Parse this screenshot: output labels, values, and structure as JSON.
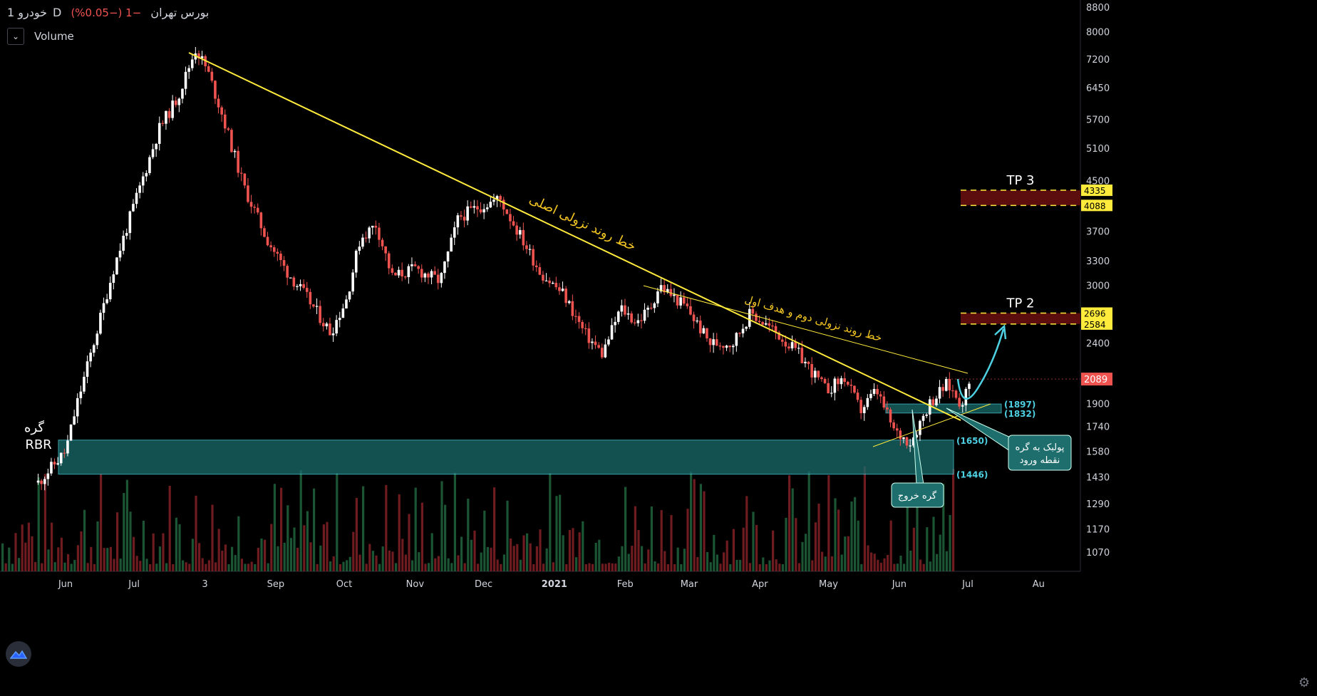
{
  "header": {
    "symbol": "خودرو",
    "interval": "1D",
    "exchange": "بورس تهران",
    "change": "−1 (−0.05%)",
    "volume_label": "Volume"
  },
  "icons": {
    "volume_toggle": "chevron-down-icon",
    "logo": "tradingview-logo-icon",
    "settings": "gear-icon"
  },
  "colors": {
    "up": "#ffffff",
    "down": "#ef5350",
    "trend": "#ffeb3b",
    "zone": "#1a6b6b",
    "tp": "#5c0d0d",
    "label_bg": "#ffeb3b",
    "cyan": "#4dd0e1"
  },
  "chart_data": {
    "type": "candlestick",
    "y_scale": "log",
    "ylim": [
      960,
      8900
    ],
    "y_ticks": [
      8800,
      8000,
      7200,
      6450,
      5700,
      5100,
      4500,
      3700,
      3300,
      3000,
      2400,
      1900,
      1740,
      1580,
      1430,
      1290,
      1170,
      1070
    ],
    "x_labels": [
      "Jun",
      "Jul",
      "3",
      "Sep",
      "Oct",
      "Nov",
      "Dec",
      "2021",
      "Feb",
      "Mar",
      "Apr",
      "May",
      "Jun",
      "Jul",
      "Au"
    ],
    "last_price": "2089",
    "close_path": [
      [
        "2020-05-20",
        1400
      ],
      [
        "2020-06-01",
        1580
      ],
      [
        "2020-06-06",
        1900
      ],
      [
        "2020-06-12",
        2300
      ],
      [
        "2020-06-22",
        3200
      ],
      [
        "2020-07-01",
        4100
      ],
      [
        "2020-07-12",
        5500
      ],
      [
        "2020-07-20",
        6200
      ],
      [
        "2020-07-28",
        7500
      ],
      [
        "2020-08-02",
        6900
      ],
      [
        "2020-08-08",
        5900
      ],
      [
        "2020-08-18",
        4400
      ],
      [
        "2020-08-28",
        3600
      ],
      [
        "2020-09-05",
        3200
      ],
      [
        "2020-09-15",
        2850
      ],
      [
        "2020-09-25",
        2500
      ],
      [
        "2020-10-02",
        2850
      ],
      [
        "2020-10-08",
        3600
      ],
      [
        "2020-10-15",
        3800
      ],
      [
        "2020-10-22",
        3100
      ],
      [
        "2020-11-01",
        3200
      ],
      [
        "2020-11-12",
        3050
      ],
      [
        "2020-11-20",
        3900
      ],
      [
        "2020-11-28",
        4050
      ],
      [
        "2020-12-08",
        4200
      ],
      [
        "2020-12-16",
        3700
      ],
      [
        "2020-12-26",
        3150
      ],
      [
        "2021-01-05",
        2900
      ],
      [
        "2021-01-14",
        2500
      ],
      [
        "2021-01-22",
        2300
      ],
      [
        "2021-01-30",
        2750
      ],
      [
        "2021-02-06",
        2600
      ],
      [
        "2021-02-12",
        2750
      ],
      [
        "2021-02-16",
        3000
      ],
      [
        "2021-02-28",
        2750
      ],
      [
        "2021-03-10",
        2400
      ],
      [
        "2021-03-20",
        2400
      ],
      [
        "2021-03-28",
        2700
      ],
      [
        "2021-04-08",
        2500
      ],
      [
        "2021-04-18",
        2300
      ],
      [
        "2021-04-30",
        2000
      ],
      [
        "2021-05-08",
        2100
      ],
      [
        "2021-05-15",
        1850
      ],
      [
        "2021-05-22",
        2000
      ],
      [
        "2021-05-30",
        1700
      ],
      [
        "2021-06-06",
        1640
      ],
      [
        "2021-06-14",
        1900
      ],
      [
        "2021-06-22",
        2050
      ],
      [
        "2021-06-28",
        1900
      ],
      [
        "2021-07-03",
        2089
      ]
    ],
    "levels": [
      {
        "label": "4335",
        "value": 4335
      },
      {
        "label": "4088",
        "value": 4088
      },
      {
        "label": "2696",
        "value": 2696
      },
      {
        "label": "2584",
        "value": 2584
      }
    ],
    "zones": [
      {
        "label_top": "(1650)",
        "label_bottom": "(1446)",
        "top": 1650,
        "bottom": 1446
      },
      {
        "label_top": "(1897)",
        "label_bottom": "(1832)",
        "top": 1897,
        "bottom": 1832
      }
    ],
    "annotations": {
      "tp3": "TP 3",
      "tp2": "TP 2",
      "main_trend": "خط روند نزولی اصلی",
      "second_trend": "خط روند نزولی دوم و هدف اول",
      "rbr_1": "گره",
      "rbr_2": "RBR",
      "exit_zone": "گره خروج",
      "entry_1": "پولبک به گره",
      "entry_2": "نقطه ورود"
    }
  }
}
